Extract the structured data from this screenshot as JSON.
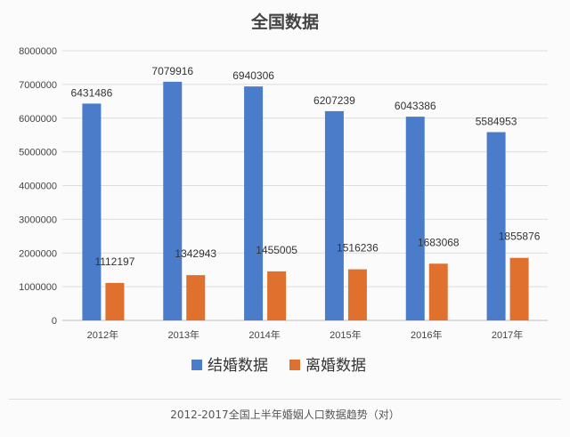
{
  "chart_data": {
    "type": "bar",
    "title": "全国数据",
    "categories": [
      "2012年",
      "2013年",
      "2014年",
      "2015年",
      "2016年",
      "2017年"
    ],
    "series": [
      {
        "name": "结婚数据",
        "color": "#4a7cc9",
        "values": [
          6431486,
          7079916,
          6940306,
          6207239,
          6043386,
          5584953
        ]
      },
      {
        "name": "离婚数据",
        "color": "#e0702e",
        "values": [
          1112197,
          1342943,
          1455005,
          1516236,
          1683068,
          1855876
        ]
      }
    ],
    "ylim": [
      0,
      8000000
    ],
    "yticks": [
      0,
      1000000,
      2000000,
      3000000,
      4000000,
      5000000,
      6000000,
      7000000,
      8000000
    ],
    "grid": true,
    "legend": "bottom",
    "xlabel": "",
    "ylabel": ""
  },
  "caption": "2012-2017全国上半年婚姻人口数据趋势（对）"
}
